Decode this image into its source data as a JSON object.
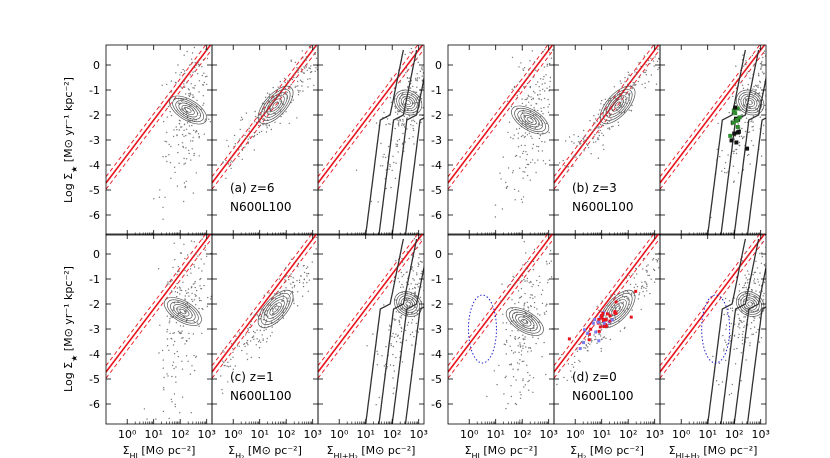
{
  "chart_data": {
    "type": "scatter",
    "title": "",
    "ylabel_parts": {
      "prefix": "Log ",
      "main": "Σ",
      "sub": "★",
      "units": " [M⊙ yr⁻¹ kpc⁻²]"
    },
    "xlabels": [
      {
        "main": "Σ",
        "sub": "HI",
        "units": " [M⊙ pc⁻²]"
      },
      {
        "main": "Σ",
        "sub": "H₂",
        "units": " [M⊙ pc⁻²]"
      },
      {
        "main": "Σ",
        "sub": "HI+H₂",
        "units": " [M⊙ pc⁻²]"
      }
    ],
    "xtick_labels": [
      "10⁰",
      "10¹",
      "10²",
      "10³"
    ],
    "xticks_log": [
      0,
      1,
      2,
      3
    ],
    "xlim_log": [
      -0.8,
      3.2
    ],
    "yticks": [
      0,
      -1,
      -2,
      -3,
      -4,
      -5,
      -6
    ],
    "ylim": [
      -6.8,
      0.8
    ],
    "reference_line": {
      "slope": 1.4,
      "intercept_log": -3.6
    },
    "panel_groups": [
      {
        "id": "a",
        "label": "(a) z=6",
        "model": "N600L100"
      },
      {
        "id": "b",
        "label": "(b) z=3",
        "model": "N600L100"
      },
      {
        "id": "c",
        "label": "(c) z=1",
        "model": "N600L100"
      },
      {
        "id": "d",
        "label": "(d) z=0",
        "model": "N600L100"
      }
    ],
    "colors": {
      "relation": "#e8141e",
      "contour": "#555555",
      "points": "#777777",
      "track": "#333333",
      "observed_green": "#2e8b2e",
      "observed_black": "#111111",
      "observed_red": "#e8141e",
      "observed_blue": "#7b7bef",
      "dotted_region": "#2222cc"
    }
  }
}
